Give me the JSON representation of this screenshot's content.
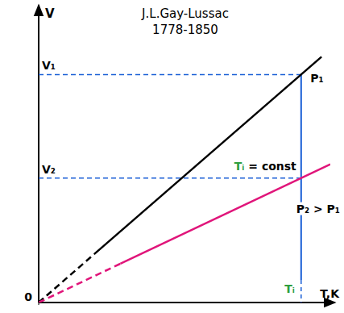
{
  "chart_data": {
    "type": "line",
    "title": "J.L.Gay-Lussac",
    "subtitle": "1778-1850",
    "x_label": "T,K",
    "y_label": "V",
    "xlim": [
      0,
      10
    ],
    "ylim": [
      0,
      10
    ],
    "xticks": [
      0,
      {
        "value": 9,
        "label": "Tᵢ"
      }
    ],
    "yticks": [
      {
        "value": 7.7,
        "label": "V₁"
      },
      {
        "value": 4.2,
        "label": "V₂"
      }
    ],
    "grid": false,
    "annotations": [
      {
        "text": "Tᵢ = const"
      }
    ],
    "series": [
      {
        "name": "P₁",
        "color": "#000000",
        "line_style": "solid",
        "x": [
          1.9,
          9.7
        ],
        "values": [
          1.63,
          8.3
        ]
      },
      {
        "color": "#000000",
        "line_style": "dashed",
        "x": [
          0,
          1.9
        ],
        "values": [
          0,
          1.63
        ]
      },
      {
        "name": "P₂ > P₁",
        "color": "#e0157a",
        "line_style": "solid",
        "x": [
          2.8,
          10
        ],
        "values": [
          1.31,
          4.67
        ]
      },
      {
        "color": "#e0157a",
        "line_style": "dashed",
        "x": [
          0,
          2.8
        ],
        "values": [
          0,
          1.31
        ]
      }
    ]
  }
}
